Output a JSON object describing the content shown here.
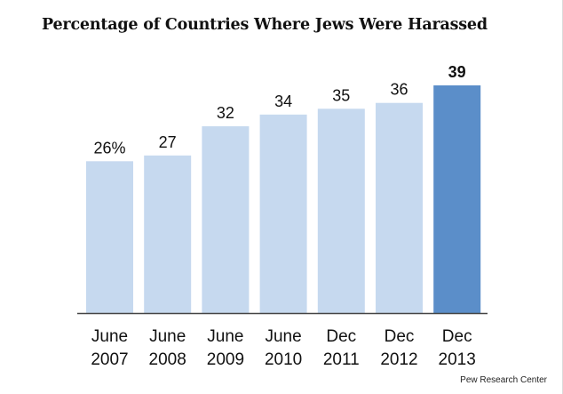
{
  "title": "Percentage of Countries Where Jews Were Harassed",
  "credit": "Pew Research Center",
  "colors": {
    "bar": "#c6d9ef",
    "highlight_bar": "#5b8ec9",
    "baseline": "#444444",
    "label_text": "#111111"
  },
  "chart_data": {
    "type": "bar",
    "title": "Percentage of Countries Where Jews Were Harassed",
    "xlabel": "",
    "ylabel": "",
    "ylim": [
      0,
      40
    ],
    "grid": false,
    "legend": "none",
    "categories": [
      [
        "June",
        "2007"
      ],
      [
        "June",
        "2008"
      ],
      [
        "June",
        "2009"
      ],
      [
        "June",
        "2010"
      ],
      [
        "Dec",
        "2011"
      ],
      [
        "Dec",
        "2012"
      ],
      [
        "Dec",
        "2013"
      ]
    ],
    "values": [
      26,
      27,
      32,
      34,
      35,
      36,
      39
    ],
    "data_labels": [
      "26%",
      "27",
      "32",
      "34",
      "35",
      "36",
      "39"
    ],
    "highlight_index": 6
  }
}
